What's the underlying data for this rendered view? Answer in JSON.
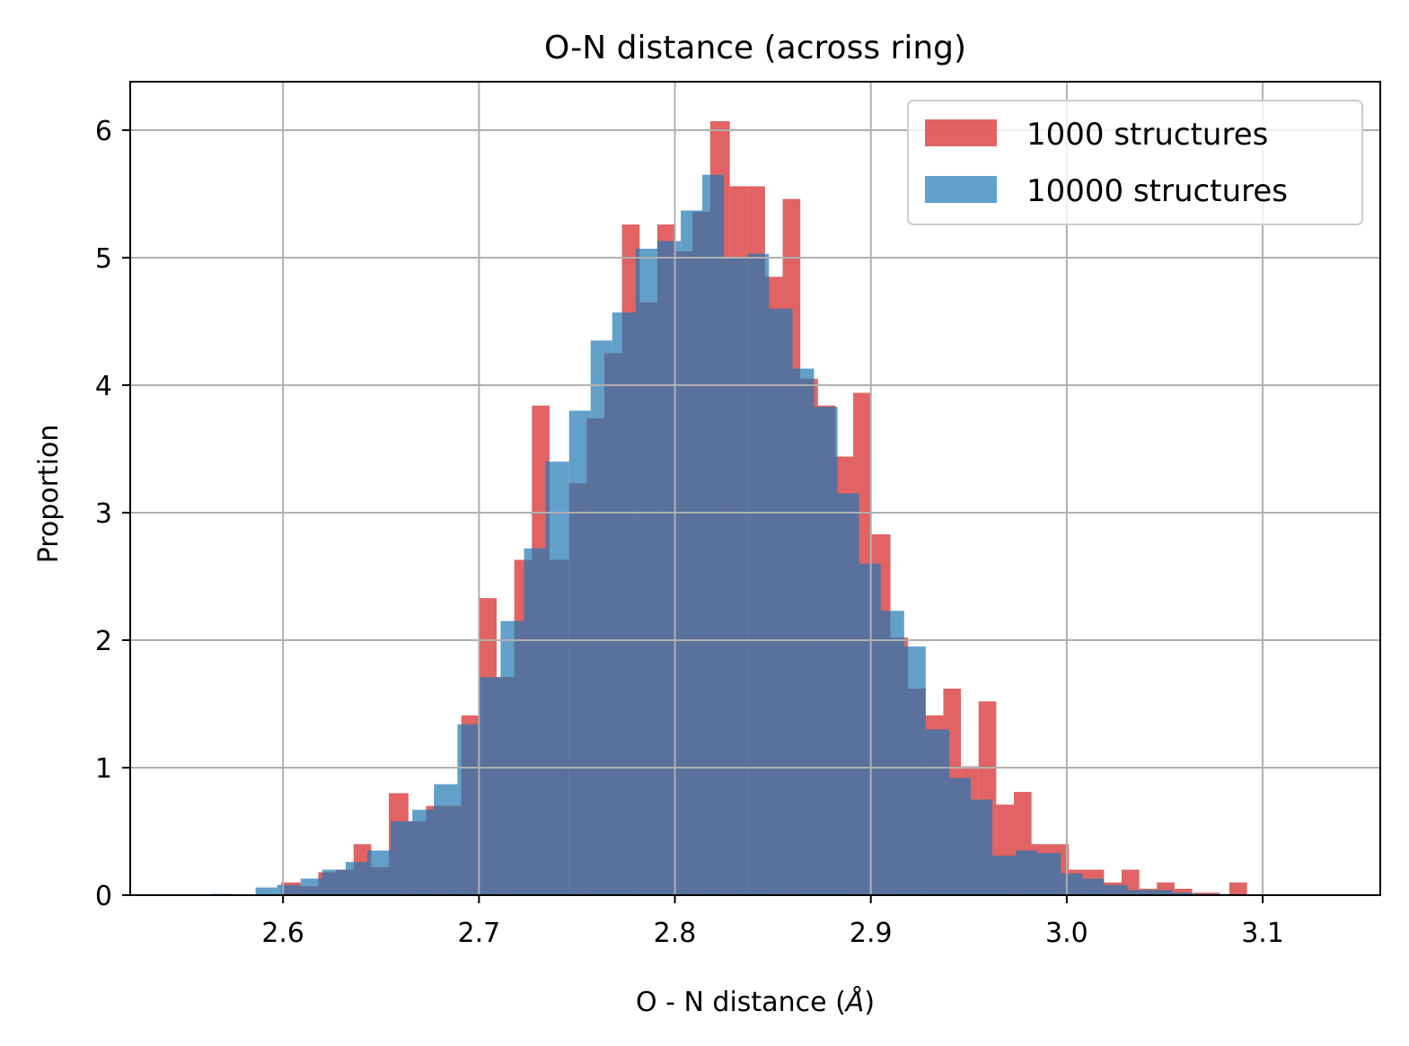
{
  "chart_data": {
    "type": "bar",
    "title": "O-N distance (across ring)",
    "xlabel": "O - N distance (",
    "xlabel_unit": "Å",
    "xlabel_close": ")",
    "ylabel": "Proportion",
    "xlim": [
      2.522,
      3.16
    ],
    "ylim": [
      0,
      6.38
    ],
    "xticks": [
      2.6,
      2.7,
      2.8,
      2.9,
      3.0,
      3.1
    ],
    "xtick_labels": [
      "2.6",
      "2.7",
      "2.8",
      "2.9",
      "3.0",
      "3.1"
    ],
    "yticks": [
      0,
      1,
      2,
      3,
      4,
      5,
      6
    ],
    "ytick_labels": [
      "0",
      "1",
      "2",
      "3",
      "4",
      "5",
      "6"
    ],
    "grid": true,
    "legend_position": "top-right",
    "series": [
      {
        "name": "1000 structures",
        "color": "#d62728",
        "opacity": 0.72,
        "bins": [
          [
            2.599,
            2.609,
            0.1
          ],
          [
            2.609,
            2.618,
            0.07
          ],
          [
            2.618,
            2.627,
            0.18
          ],
          [
            2.627,
            2.636,
            0.2
          ],
          [
            2.636,
            2.645,
            0.4
          ],
          [
            2.645,
            2.654,
            0.22
          ],
          [
            2.654,
            2.664,
            0.8
          ],
          [
            2.664,
            2.673,
            0.58
          ],
          [
            2.673,
            2.682,
            0.7
          ],
          [
            2.682,
            2.691,
            0.7
          ],
          [
            2.691,
            2.7,
            1.41
          ],
          [
            2.7,
            2.709,
            2.33
          ],
          [
            2.709,
            2.718,
            1.71
          ],
          [
            2.718,
            2.727,
            2.63
          ],
          [
            2.727,
            2.736,
            3.84
          ],
          [
            2.736,
            2.746,
            2.63
          ],
          [
            2.746,
            2.755,
            3.23
          ],
          [
            2.755,
            2.764,
            3.74
          ],
          [
            2.764,
            2.773,
            4.25
          ],
          [
            2.773,
            2.782,
            5.26
          ],
          [
            2.782,
            2.791,
            4.65
          ],
          [
            2.791,
            2.8,
            5.26
          ],
          [
            2.8,
            2.809,
            5.05
          ],
          [
            2.809,
            2.818,
            5.36
          ],
          [
            2.818,
            2.828,
            6.07
          ],
          [
            2.828,
            2.837,
            5.56
          ],
          [
            2.837,
            2.846,
            5.56
          ],
          [
            2.846,
            2.855,
            4.85
          ],
          [
            2.855,
            2.864,
            5.46
          ],
          [
            2.864,
            2.873,
            4.05
          ],
          [
            2.873,
            2.882,
            3.84
          ],
          [
            2.882,
            2.891,
            3.44
          ],
          [
            2.891,
            2.9,
            3.94
          ],
          [
            2.9,
            2.91,
            2.83
          ],
          [
            2.91,
            2.919,
            2.02
          ],
          [
            2.919,
            2.928,
            1.62
          ],
          [
            2.928,
            2.937,
            1.41
          ],
          [
            2.937,
            2.946,
            1.62
          ],
          [
            2.946,
            2.955,
            1.01
          ],
          [
            2.955,
            2.964,
            1.52
          ],
          [
            2.964,
            2.973,
            0.71
          ],
          [
            2.973,
            2.982,
            0.81
          ],
          [
            2.982,
            2.992,
            0.4
          ],
          [
            2.992,
            3.001,
            0.4
          ],
          [
            3.001,
            3.01,
            0.2
          ],
          [
            3.01,
            3.019,
            0.2
          ],
          [
            3.019,
            3.028,
            0.1
          ],
          [
            3.028,
            3.037,
            0.2
          ],
          [
            3.037,
            3.046,
            0.05
          ],
          [
            3.046,
            3.055,
            0.1
          ],
          [
            3.055,
            3.064,
            0.05
          ],
          [
            3.065,
            3.078,
            0.02
          ],
          [
            3.083,
            3.092,
            0.1
          ]
        ]
      },
      {
        "name": "10000 structures",
        "color": "#1f77b4",
        "opacity": 0.7,
        "bins": [
          [
            2.563,
            2.574,
            0.01
          ],
          [
            2.586,
            2.597,
            0.06
          ],
          [
            2.597,
            2.609,
            0.08
          ],
          [
            2.609,
            2.62,
            0.13
          ],
          [
            2.62,
            2.632,
            0.2
          ],
          [
            2.632,
            2.643,
            0.26
          ],
          [
            2.643,
            2.655,
            0.35
          ],
          [
            2.655,
            2.666,
            0.58
          ],
          [
            2.666,
            2.677,
            0.67
          ],
          [
            2.677,
            2.689,
            0.87
          ],
          [
            2.689,
            2.7,
            1.34
          ],
          [
            2.7,
            2.711,
            1.71
          ],
          [
            2.711,
            2.723,
            2.15
          ],
          [
            2.723,
            2.734,
            2.72
          ],
          [
            2.734,
            2.746,
            3.4
          ],
          [
            2.746,
            2.757,
            3.8
          ],
          [
            2.757,
            2.768,
            4.35
          ],
          [
            2.768,
            2.78,
            4.57
          ],
          [
            2.78,
            2.791,
            5.07
          ],
          [
            2.791,
            2.803,
            5.13
          ],
          [
            2.803,
            2.814,
            5.37
          ],
          [
            2.814,
            2.825,
            5.65
          ],
          [
            2.825,
            2.837,
            5.0
          ],
          [
            2.837,
            2.848,
            5.03
          ],
          [
            2.848,
            2.86,
            4.6
          ],
          [
            2.86,
            2.871,
            4.13
          ],
          [
            2.871,
            2.883,
            3.83
          ],
          [
            2.883,
            2.894,
            3.15
          ],
          [
            2.894,
            2.905,
            2.6
          ],
          [
            2.905,
            2.917,
            2.23
          ],
          [
            2.917,
            2.928,
            1.95
          ],
          [
            2.928,
            2.94,
            1.3
          ],
          [
            2.94,
            2.951,
            0.92
          ],
          [
            2.951,
            2.962,
            0.75
          ],
          [
            2.962,
            2.974,
            0.31
          ],
          [
            2.974,
            2.985,
            0.35
          ],
          [
            2.985,
            2.997,
            0.33
          ],
          [
            2.997,
            3.008,
            0.17
          ],
          [
            3.008,
            3.019,
            0.13
          ],
          [
            3.019,
            3.031,
            0.08
          ],
          [
            3.031,
            3.042,
            0.04
          ],
          [
            3.042,
            3.054,
            0.04
          ],
          [
            3.054,
            3.065,
            0.02
          ],
          [
            3.065,
            3.076,
            0.01
          ],
          [
            3.076,
            3.088,
            0.01
          ],
          [
            3.088,
            3.133,
            0.005
          ]
        ]
      }
    ]
  }
}
